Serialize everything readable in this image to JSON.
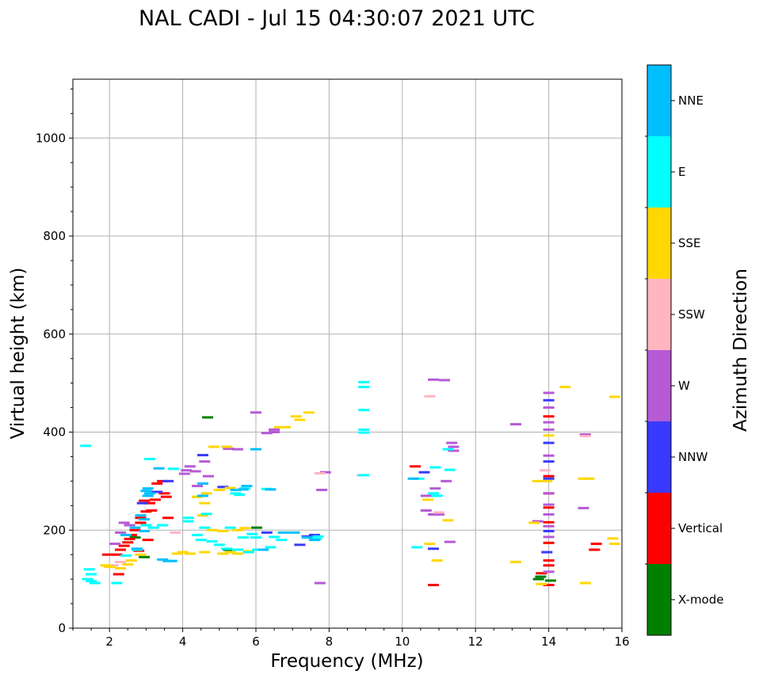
{
  "chart_data": {
    "type": "scatter",
    "title": "NAL CADI - Jul 15 04:30:07 2021 UTC",
    "xlabel": "Frequency (MHz)",
    "ylabel": "Virtual height (km)",
    "xlim": [
      1,
      16
    ],
    "ylim": [
      0,
      1120
    ],
    "x_ticks": [
      2,
      4,
      6,
      8,
      10,
      12,
      14,
      16
    ],
    "y_ticks": [
      0,
      200,
      400,
      600,
      800,
      1000
    ],
    "grid": true,
    "colorbar": {
      "label": "Azimuth Direction",
      "categories": [
        "X-mode",
        "Vertical",
        "NNW",
        "W",
        "SSW",
        "SSE",
        "E",
        "NNE"
      ],
      "colors": [
        "#008000",
        "#ff0000",
        "#3a3aff",
        "#b65ad6",
        "#ffb6c1",
        "#ffd700",
        "#00ffff",
        "#00bfff"
      ]
    },
    "series": [
      {
        "name": "X-mode",
        "points": [
          [
            4.68,
            430
          ],
          [
            13.78,
            105
          ],
          [
            14.05,
            97
          ],
          [
            13.72,
            100
          ],
          [
            6.02,
            205
          ],
          [
            2.7,
            185
          ],
          [
            5.25,
            160
          ],
          [
            2.95,
            145
          ]
        ]
      },
      {
        "name": "Vertical",
        "points": [
          [
            3.1,
            255
          ],
          [
            3.25,
            262
          ],
          [
            3.5,
            275
          ],
          [
            3.55,
            268
          ],
          [
            3.0,
            238
          ],
          [
            2.85,
            225
          ],
          [
            2.85,
            215
          ],
          [
            2.7,
            200
          ],
          [
            2.6,
            190
          ],
          [
            2.55,
            182
          ],
          [
            2.5,
            175
          ],
          [
            2.4,
            168
          ],
          [
            2.3,
            160
          ],
          [
            2.2,
            150
          ],
          [
            3.05,
            180
          ],
          [
            3.3,
            295
          ],
          [
            3.45,
            300
          ],
          [
            3.6,
            225
          ],
          [
            2.95,
            260
          ],
          [
            3.15,
            240
          ],
          [
            1.95,
            150
          ],
          [
            2.8,
            158
          ],
          [
            10.35,
            330
          ],
          [
            10.85,
            88
          ],
          [
            13.8,
            112
          ],
          [
            14.0,
            432
          ],
          [
            14.0,
            138
          ],
          [
            14.0,
            275
          ],
          [
            14.0,
            310
          ],
          [
            14.0,
            246
          ],
          [
            14.0,
            216
          ],
          [
            14.0,
            174
          ],
          [
            14.0,
            128
          ],
          [
            14.0,
            88
          ],
          [
            15.3,
            172
          ],
          [
            15.25,
            160
          ],
          [
            15.0,
            395
          ],
          [
            2.25,
            110
          ]
        ]
      },
      {
        "name": "NNW",
        "points": [
          [
            3.6,
            300
          ],
          [
            4.55,
            353
          ],
          [
            7.4,
            187
          ],
          [
            7.6,
            190
          ],
          [
            10.6,
            318
          ],
          [
            10.85,
            162
          ],
          [
            14.0,
            465
          ],
          [
            14.0,
            378
          ],
          [
            14.0,
            340
          ],
          [
            14.0,
            198
          ],
          [
            13.95,
            155
          ],
          [
            14.0,
            305
          ],
          [
            5.1,
            288
          ],
          [
            6.3,
            195
          ],
          [
            7.2,
            170
          ],
          [
            3.3,
            278
          ],
          [
            2.9,
            255
          ]
        ]
      },
      {
        "name": "W",
        "points": [
          [
            4.2,
            330
          ],
          [
            4.1,
            322
          ],
          [
            4.05,
            315
          ],
          [
            4.35,
            320
          ],
          [
            4.7,
            310
          ],
          [
            4.4,
            290
          ],
          [
            6.3,
            398
          ],
          [
            6.5,
            400
          ],
          [
            6.5,
            405
          ],
          [
            6.0,
            440
          ],
          [
            10.85,
            507
          ],
          [
            11.15,
            506
          ],
          [
            11.2,
            300
          ],
          [
            11.35,
            378
          ],
          [
            11.4,
            370
          ],
          [
            11.4,
            362
          ],
          [
            13.1,
            416
          ],
          [
            13.7,
            218
          ],
          [
            14.0,
            480
          ],
          [
            14.0,
            450
          ],
          [
            14.0,
            420
          ],
          [
            14.0,
            405
          ],
          [
            14.0,
            352
          ],
          [
            14.0,
            275
          ],
          [
            14.0,
            252
          ],
          [
            14.0,
            232
          ],
          [
            14.0,
            208
          ],
          [
            14.0,
            186
          ],
          [
            14.0,
            115
          ],
          [
            14.95,
            245
          ],
          [
            15.0,
            395
          ],
          [
            11.3,
            176
          ],
          [
            10.9,
            285
          ],
          [
            10.65,
            240
          ],
          [
            10.65,
            270
          ],
          [
            7.75,
            92
          ],
          [
            7.8,
            282
          ],
          [
            5.25,
            366
          ],
          [
            5.5,
            365
          ],
          [
            7.9,
            318
          ],
          [
            2.4,
            215
          ],
          [
            2.55,
            210
          ],
          [
            2.3,
            195
          ],
          [
            2.15,
            172
          ],
          [
            4.6,
            340
          ],
          [
            10.9,
            232
          ],
          [
            10.85,
            232
          ],
          [
            11.0,
            232
          ]
        ]
      },
      {
        "name": "SSW",
        "points": [
          [
            8.9,
            312
          ],
          [
            10.75,
            473
          ],
          [
            11.0,
            236
          ],
          [
            13.9,
            322
          ],
          [
            15.0,
            392
          ],
          [
            7.75,
            316
          ],
          [
            3.8,
            195
          ],
          [
            2.1,
            128
          ],
          [
            2.3,
            135
          ]
        ]
      },
      {
        "name": "SSE",
        "points": [
          [
            4.2,
            152
          ],
          [
            4.0,
            155
          ],
          [
            3.85,
            152
          ],
          [
            4.6,
            155
          ],
          [
            5.1,
            152
          ],
          [
            5.3,
            155
          ],
          [
            5.5,
            152
          ],
          [
            5.8,
            157
          ],
          [
            4.8,
            200
          ],
          [
            5.1,
            198
          ],
          [
            5.5,
            200
          ],
          [
            5.7,
            204
          ],
          [
            5.3,
            286
          ],
          [
            5.0,
            282
          ],
          [
            4.65,
            275
          ],
          [
            6.65,
            410
          ],
          [
            6.8,
            410
          ],
          [
            7.2,
            425
          ],
          [
            7.1,
            432
          ],
          [
            7.45,
            440
          ],
          [
            14.45,
            492
          ],
          [
            15.8,
            472
          ],
          [
            13.1,
            135
          ],
          [
            13.7,
            300
          ],
          [
            13.95,
            300
          ],
          [
            14.95,
            305
          ],
          [
            15.1,
            305
          ],
          [
            15.0,
            92
          ],
          [
            15.75,
            183
          ],
          [
            15.8,
            172
          ],
          [
            13.6,
            215
          ],
          [
            13.8,
            90
          ],
          [
            10.75,
            172
          ],
          [
            10.95,
            138
          ],
          [
            11.25,
            220
          ],
          [
            10.7,
            262
          ],
          [
            2.5,
            130
          ],
          [
            2.3,
            122
          ],
          [
            2.0,
            125
          ],
          [
            1.9,
            128
          ],
          [
            2.6,
            138
          ],
          [
            2.85,
            150
          ],
          [
            5.2,
            370
          ],
          [
            4.85,
            370
          ],
          [
            4.55,
            230
          ],
          [
            4.4,
            268
          ],
          [
            4.6,
            255
          ],
          [
            14.0,
            393
          ]
        ]
      },
      {
        "name": "E",
        "points": [
          [
            3.1,
            345
          ],
          [
            1.35,
            372
          ],
          [
            5.45,
            275
          ],
          [
            5.55,
            272
          ],
          [
            5.7,
            285
          ],
          [
            6.3,
            284
          ],
          [
            6.5,
            186
          ],
          [
            6.7,
            180
          ],
          [
            6.4,
            165
          ],
          [
            6.05,
            160
          ],
          [
            5.8,
            155
          ],
          [
            5.65,
            185
          ],
          [
            5.9,
            192
          ],
          [
            6.0,
            185
          ],
          [
            4.15,
            218
          ],
          [
            4.4,
            190
          ],
          [
            4.6,
            205
          ],
          [
            5.3,
            205
          ],
          [
            4.5,
            180
          ],
          [
            4.8,
            177
          ],
          [
            5.0,
            170
          ],
          [
            5.2,
            162
          ],
          [
            5.5,
            160
          ],
          [
            8.95,
            502
          ],
          [
            8.95,
            492
          ],
          [
            8.95,
            445
          ],
          [
            8.95,
            405
          ],
          [
            8.95,
            399
          ],
          [
            8.95,
            312
          ],
          [
            10.85,
            275
          ],
          [
            10.95,
            270
          ],
          [
            10.9,
            328
          ],
          [
            11.3,
            323
          ],
          [
            1.4,
            100
          ],
          [
            1.5,
            110
          ],
          [
            1.5,
            96
          ],
          [
            1.6,
            92
          ],
          [
            2.2,
            92
          ],
          [
            1.45,
            120
          ],
          [
            2.45,
            148
          ],
          [
            2.75,
            160
          ],
          [
            3.0,
            210
          ],
          [
            3.2,
            205
          ],
          [
            3.45,
            210
          ],
          [
            4.15,
            225
          ],
          [
            3.75,
            325
          ],
          [
            4.65,
            233
          ],
          [
            7.7,
            187
          ],
          [
            7.65,
            182
          ],
          [
            10.45,
            305
          ],
          [
            10.4,
            165
          ],
          [
            11.25,
            365
          ]
        ]
      },
      {
        "name": "NNE",
        "points": [
          [
            3.6,
            137
          ],
          [
            3.7,
            137
          ],
          [
            3.45,
            140
          ],
          [
            3.0,
            280
          ],
          [
            3.05,
            270
          ],
          [
            3.1,
            275
          ],
          [
            2.85,
            230
          ],
          [
            2.95,
            222
          ],
          [
            2.7,
            205
          ],
          [
            2.45,
            190
          ],
          [
            3.05,
            285
          ],
          [
            6.0,
            365
          ],
          [
            6.4,
            283
          ],
          [
            6.75,
            195
          ],
          [
            7.05,
            195
          ],
          [
            7.4,
            185
          ],
          [
            5.45,
            282
          ],
          [
            5.65,
            283
          ],
          [
            7.6,
            180
          ],
          [
            3.35,
            326
          ],
          [
            4.55,
            270
          ],
          [
            2.75,
            162
          ],
          [
            2.95,
            198
          ],
          [
            6.2,
            160
          ],
          [
            4.55,
            295
          ],
          [
            5.75,
            290
          ],
          [
            10.3,
            305
          ]
        ]
      }
    ]
  }
}
